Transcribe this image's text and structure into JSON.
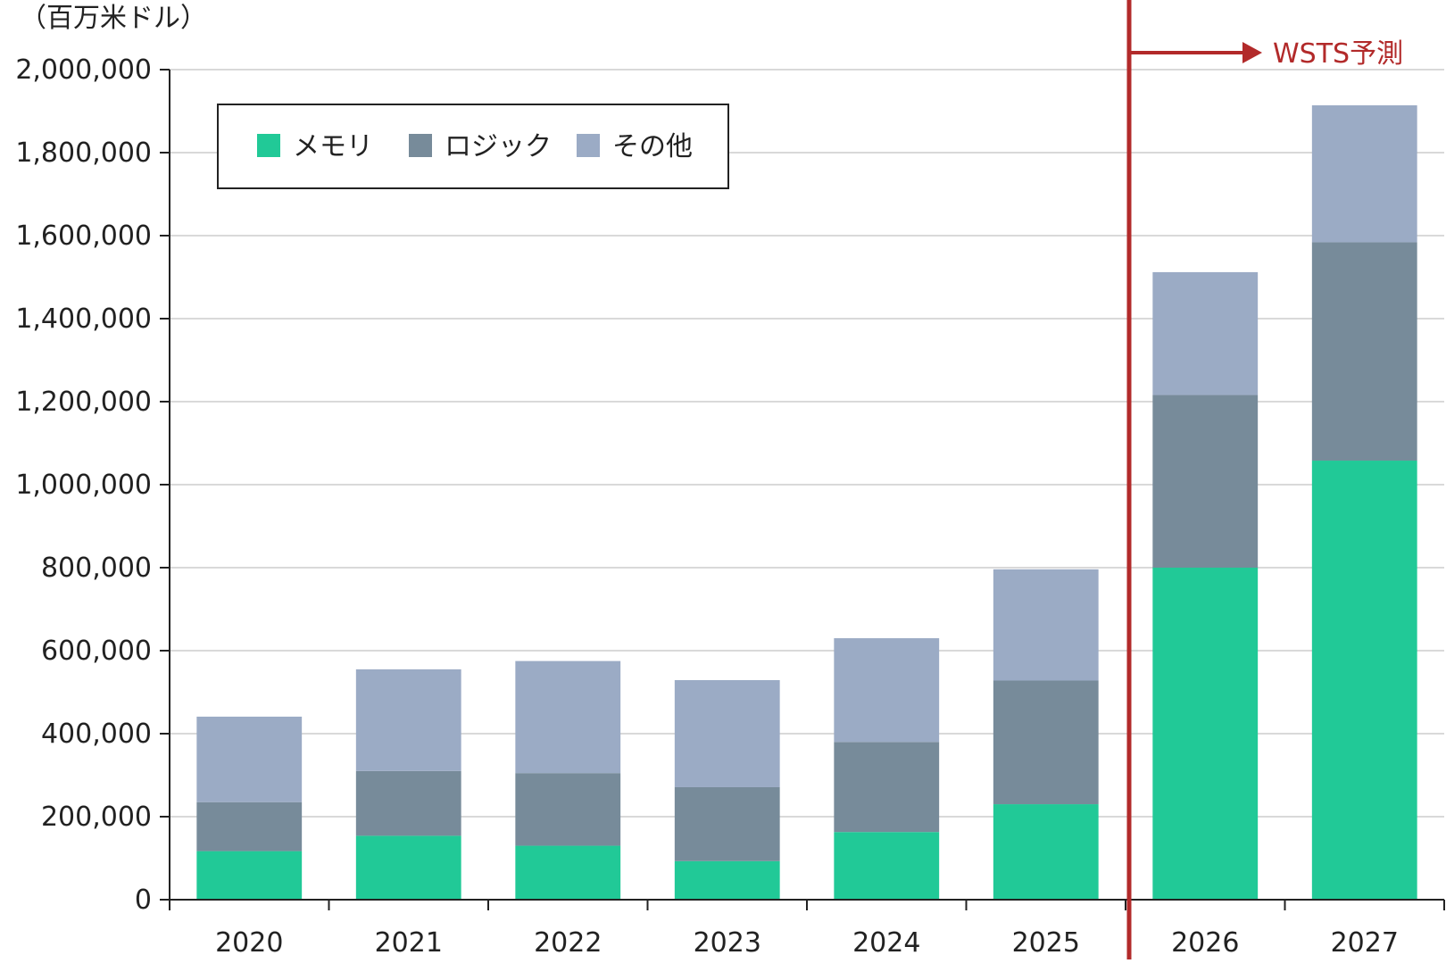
{
  "chart_data": {
    "type": "bar",
    "stacked": true,
    "unit_label": "（百万米ドル）",
    "categories": [
      "2020",
      "2021",
      "2022",
      "2023",
      "2024",
      "2025",
      "2026",
      "2027"
    ],
    "series": [
      {
        "name": "メモリ",
        "color": "#21c997",
        "values": [
          117000,
          154000,
          130000,
          93000,
          163000,
          230000,
          800000,
          1058000
        ]
      },
      {
        "name": "ロジック",
        "color": "#778b9a",
        "values": [
          118000,
          156000,
          175000,
          178000,
          217000,
          298000,
          416000,
          526000
        ]
      },
      {
        "name": "その他",
        "color": "#9babc5",
        "values": [
          206000,
          245000,
          270000,
          258000,
          250000,
          268000,
          296000,
          330000
        ]
      }
    ],
    "ylim": [
      0,
      2000000
    ],
    "yticks": [
      0,
      200000,
      400000,
      600000,
      800000,
      1000000,
      1200000,
      1400000,
      1600000,
      1800000,
      2000000
    ],
    "ytick_labels": [
      "0",
      "200,000",
      "400,000",
      "600,000",
      "800,000",
      "1,000,000",
      "1,200,000",
      "1,400,000",
      "1,600,000",
      "1,800,000",
      "2,000,000"
    ],
    "grid": true,
    "legend_position": "top-left",
    "forecast": {
      "label": "WSTS予測",
      "starts_before": "2026",
      "color": "#b22a2a"
    }
  }
}
